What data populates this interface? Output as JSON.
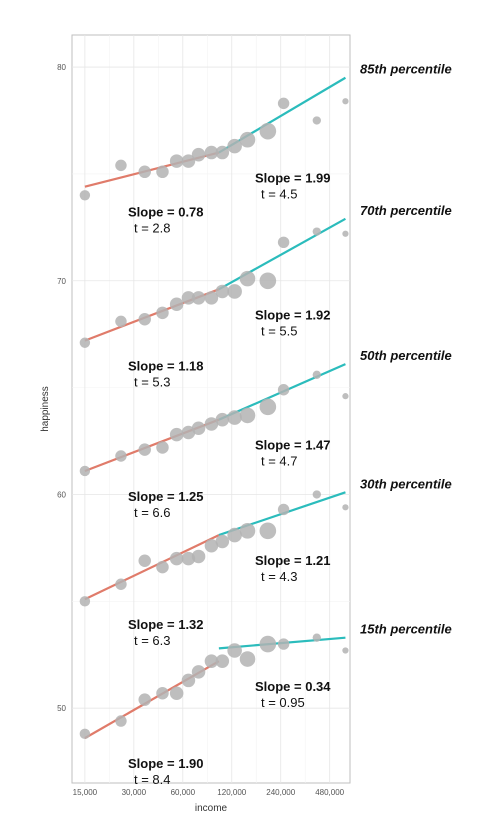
{
  "chart_data": {
    "type": "scatter",
    "title": "",
    "xlabel": "income",
    "ylabel": "happiness",
    "x_scale": "log",
    "x_ticks": [
      15000,
      30000,
      60000,
      120000,
      240000,
      480000
    ],
    "x_tick_labels": [
      "15,000",
      "30,000",
      "60,000",
      "120,000",
      "240,000",
      "480,000"
    ],
    "y_ticks": [
      50,
      60,
      70,
      80
    ],
    "y_tick_labels": [
      "50",
      "60",
      "70",
      "80"
    ],
    "xlim": [
      12500,
      640000
    ],
    "ylim": [
      46.5,
      81.5
    ],
    "grid": true,
    "point_color": "#b3b3b3",
    "low_income_line_color": "#e07b6a",
    "high_income_line_color": "#2bbcbc",
    "series": [
      {
        "name": "85th percentile",
        "points": [
          {
            "x": 15000,
            "y": 74.0,
            "weight": 1.0
          },
          {
            "x": 25000,
            "y": 75.4,
            "weight": 1.1
          },
          {
            "x": 35000,
            "y": 75.1,
            "weight": 1.2
          },
          {
            "x": 45000,
            "y": 75.1,
            "weight": 1.2
          },
          {
            "x": 55000,
            "y": 75.6,
            "weight": 1.3
          },
          {
            "x": 65000,
            "y": 75.6,
            "weight": 1.3
          },
          {
            "x": 75000,
            "y": 75.9,
            "weight": 1.3
          },
          {
            "x": 90000,
            "y": 76.0,
            "weight": 1.3
          },
          {
            "x": 105000,
            "y": 76.0,
            "weight": 1.3
          },
          {
            "x": 125000,
            "y": 76.3,
            "weight": 1.4
          },
          {
            "x": 150000,
            "y": 76.6,
            "weight": 1.5
          },
          {
            "x": 200000,
            "y": 77.0,
            "weight": 1.6
          },
          {
            "x": 250000,
            "y": 78.3,
            "weight": 1.1
          },
          {
            "x": 400000,
            "y": 77.5,
            "weight": 0.8
          },
          {
            "x": 600000,
            "y": 78.4,
            "weight": 0.6
          }
        ],
        "low_fit": [
          [
            15000,
            74.4
          ],
          [
            100000,
            76.0
          ]
        ],
        "high_fit": [
          [
            100000,
            76.0
          ],
          [
            600000,
            79.5
          ]
        ],
        "low_slope_label": "Slope = 0.78",
        "low_t_label": "t = 2.8",
        "high_slope_label": "Slope = 1.99",
        "high_t_label": "t = 4.5"
      },
      {
        "name": "70th percentile",
        "points": [
          {
            "x": 15000,
            "y": 67.1,
            "weight": 1.0
          },
          {
            "x": 25000,
            "y": 68.1,
            "weight": 1.1
          },
          {
            "x": 35000,
            "y": 68.2,
            "weight": 1.2
          },
          {
            "x": 45000,
            "y": 68.5,
            "weight": 1.2
          },
          {
            "x": 55000,
            "y": 68.9,
            "weight": 1.3
          },
          {
            "x": 65000,
            "y": 69.2,
            "weight": 1.3
          },
          {
            "x": 75000,
            "y": 69.2,
            "weight": 1.3
          },
          {
            "x": 90000,
            "y": 69.2,
            "weight": 1.3
          },
          {
            "x": 105000,
            "y": 69.5,
            "weight": 1.3
          },
          {
            "x": 125000,
            "y": 69.5,
            "weight": 1.4
          },
          {
            "x": 150000,
            "y": 70.1,
            "weight": 1.5
          },
          {
            "x": 200000,
            "y": 70.0,
            "weight": 1.6
          },
          {
            "x": 250000,
            "y": 71.8,
            "weight": 1.1
          },
          {
            "x": 400000,
            "y": 72.3,
            "weight": 0.8
          },
          {
            "x": 600000,
            "y": 72.2,
            "weight": 0.6
          }
        ],
        "low_fit": [
          [
            15000,
            67.2
          ],
          [
            100000,
            69.6
          ]
        ],
        "high_fit": [
          [
            100000,
            69.6
          ],
          [
            600000,
            72.9
          ]
        ],
        "low_slope_label": "Slope = 1.18",
        "low_t_label": "t = 5.3",
        "high_slope_label": "Slope = 1.92",
        "high_t_label": "t = 5.5"
      },
      {
        "name": "50th percentile",
        "points": [
          {
            "x": 15000,
            "y": 61.1,
            "weight": 1.0
          },
          {
            "x": 25000,
            "y": 61.8,
            "weight": 1.1
          },
          {
            "x": 35000,
            "y": 62.1,
            "weight": 1.2
          },
          {
            "x": 45000,
            "y": 62.2,
            "weight": 1.2
          },
          {
            "x": 55000,
            "y": 62.8,
            "weight": 1.3
          },
          {
            "x": 65000,
            "y": 62.9,
            "weight": 1.3
          },
          {
            "x": 75000,
            "y": 63.1,
            "weight": 1.3
          },
          {
            "x": 90000,
            "y": 63.3,
            "weight": 1.3
          },
          {
            "x": 105000,
            "y": 63.5,
            "weight": 1.3
          },
          {
            "x": 125000,
            "y": 63.6,
            "weight": 1.4
          },
          {
            "x": 150000,
            "y": 63.7,
            "weight": 1.5
          },
          {
            "x": 200000,
            "y": 64.1,
            "weight": 1.6
          },
          {
            "x": 250000,
            "y": 64.9,
            "weight": 1.1
          },
          {
            "x": 400000,
            "y": 65.6,
            "weight": 0.8
          },
          {
            "x": 600000,
            "y": 64.6,
            "weight": 0.6
          }
        ],
        "low_fit": [
          [
            15000,
            61.1
          ],
          [
            100000,
            63.5
          ]
        ],
        "high_fit": [
          [
            100000,
            63.5
          ],
          [
            600000,
            66.1
          ]
        ],
        "low_slope_label": "Slope = 1.25",
        "low_t_label": "t = 6.6",
        "high_slope_label": "Slope = 1.47",
        "high_t_label": "t = 4.7"
      },
      {
        "name": "30th percentile",
        "points": [
          {
            "x": 15000,
            "y": 55.0,
            "weight": 1.0
          },
          {
            "x": 25000,
            "y": 55.8,
            "weight": 1.1
          },
          {
            "x": 35000,
            "y": 56.9,
            "weight": 1.2
          },
          {
            "x": 45000,
            "y": 56.6,
            "weight": 1.2
          },
          {
            "x": 55000,
            "y": 57.0,
            "weight": 1.3
          },
          {
            "x": 65000,
            "y": 57.0,
            "weight": 1.3
          },
          {
            "x": 75000,
            "y": 57.1,
            "weight": 1.3
          },
          {
            "x": 90000,
            "y": 57.6,
            "weight": 1.3
          },
          {
            "x": 105000,
            "y": 57.8,
            "weight": 1.3
          },
          {
            "x": 125000,
            "y": 58.1,
            "weight": 1.4
          },
          {
            "x": 150000,
            "y": 58.3,
            "weight": 1.5
          },
          {
            "x": 200000,
            "y": 58.3,
            "weight": 1.6
          },
          {
            "x": 250000,
            "y": 59.3,
            "weight": 1.1
          },
          {
            "x": 400000,
            "y": 60.0,
            "weight": 0.8
          },
          {
            "x": 600000,
            "y": 59.4,
            "weight": 0.6
          }
        ],
        "low_fit": [
          [
            15000,
            55.1
          ],
          [
            100000,
            58.1
          ]
        ],
        "high_fit": [
          [
            100000,
            58.1
          ],
          [
            600000,
            60.1
          ]
        ],
        "low_slope_label": "Slope = 1.32",
        "low_t_label": "t = 6.3",
        "high_slope_label": "Slope = 1.21",
        "high_t_label": "t = 4.3"
      },
      {
        "name": "15th percentile",
        "points": [
          {
            "x": 15000,
            "y": 48.8,
            "weight": 1.0
          },
          {
            "x": 25000,
            "y": 49.4,
            "weight": 1.1
          },
          {
            "x": 35000,
            "y": 50.4,
            "weight": 1.2
          },
          {
            "x": 45000,
            "y": 50.7,
            "weight": 1.2
          },
          {
            "x": 55000,
            "y": 50.7,
            "weight": 1.3
          },
          {
            "x": 65000,
            "y": 51.3,
            "weight": 1.3
          },
          {
            "x": 75000,
            "y": 51.7,
            "weight": 1.3
          },
          {
            "x": 90000,
            "y": 52.2,
            "weight": 1.3
          },
          {
            "x": 105000,
            "y": 52.2,
            "weight": 1.3
          },
          {
            "x": 125000,
            "y": 52.7,
            "weight": 1.4
          },
          {
            "x": 150000,
            "y": 52.3,
            "weight": 1.5
          },
          {
            "x": 200000,
            "y": 53.0,
            "weight": 1.6
          },
          {
            "x": 250000,
            "y": 53.0,
            "weight": 1.1
          },
          {
            "x": 400000,
            "y": 53.3,
            "weight": 0.8
          },
          {
            "x": 600000,
            "y": 52.7,
            "weight": 0.6
          }
        ],
        "low_fit": [
          [
            15000,
            48.6
          ],
          [
            100000,
            52.2
          ]
        ],
        "high_fit": [
          [
            100000,
            52.8
          ],
          [
            600000,
            53.3
          ]
        ],
        "low_slope_label": "Slope = 1.90",
        "low_t_label": "t = 8.4",
        "high_slope_label": "Slope = 0.34",
        "high_t_label": "t = 0.95"
      }
    ]
  }
}
